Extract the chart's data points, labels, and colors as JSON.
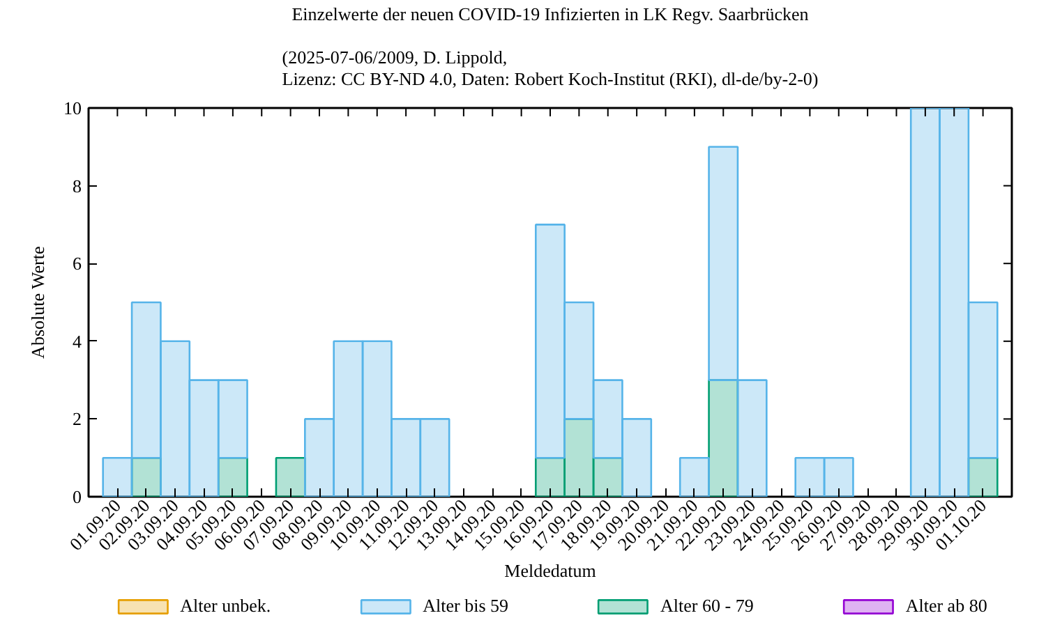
{
  "chart_data": {
    "type": "bar",
    "title": "Einzelwerte der neuen COVID-19 Infizierten in LK Regv. Saarbrücken",
    "subtitle": "(2025-07-06/2009, D. Lippold,\nLizenz: CC BY-ND 4.0, Daten: Robert Koch-Institut (RKI), dl-de/by-2-0)",
    "xlabel": "Meldedatum",
    "ylabel": "Absolute Werte",
    "categories": [
      "01.09.20",
      "02.09.20",
      "03.09.20",
      "04.09.20",
      "05.09.20",
      "06.09.20",
      "07.09.20",
      "08.09.20",
      "09.09.20",
      "10.09.20",
      "11.09.20",
      "12.09.20",
      "13.09.20",
      "14.09.20",
      "15.09.20",
      "16.09.20",
      "17.09.20",
      "18.09.20",
      "19.09.20",
      "20.09.20",
      "21.09.20",
      "22.09.20",
      "23.09.20",
      "24.09.20",
      "25.09.20",
      "26.09.20",
      "27.09.20",
      "28.09.20",
      "29.09.20",
      "30.09.20",
      "01.10.20"
    ],
    "stacked": true,
    "series": [
      {
        "name": "Alter ab 80",
        "color": "#9400d3",
        "values": [
          0,
          0,
          0,
          0,
          0,
          0,
          0,
          0,
          0,
          0,
          0,
          0,
          0,
          0,
          0,
          0,
          0,
          0,
          0,
          0,
          0,
          0,
          0,
          0,
          0,
          0,
          0,
          0,
          0,
          0,
          0
        ]
      },
      {
        "name": "Alter 60 - 79",
        "color": "#009e73",
        "values": [
          0,
          1,
          0,
          0,
          1,
          0,
          1,
          0,
          0,
          0,
          0,
          0,
          0,
          0,
          0,
          1,
          2,
          1,
          0,
          0,
          0,
          3,
          0,
          0,
          0,
          0,
          0,
          0,
          0,
          0,
          1
        ]
      },
      {
        "name": "Alter bis 59",
        "color": "#56b4e9",
        "values": [
          1,
          4,
          4,
          3,
          2,
          0,
          0,
          2,
          4,
          4,
          2,
          2,
          0,
          0,
          0,
          6,
          3,
          2,
          2,
          0,
          1,
          6,
          3,
          0,
          1,
          1,
          0,
          0,
          10,
          10,
          4
        ]
      },
      {
        "name": "Alter unbek.",
        "color": "#e69f00",
        "values": [
          0,
          0,
          0,
          0,
          0,
          0,
          0,
          0,
          0,
          0,
          0,
          0,
          0,
          0,
          0,
          0,
          0,
          0,
          0,
          0,
          0,
          0,
          0,
          0,
          0,
          0,
          0,
          0,
          0,
          0,
          0
        ]
      }
    ],
    "ylim": [
      0,
      10
    ],
    "yticks": [
      0,
      2,
      4,
      6,
      8,
      10
    ],
    "grid": false,
    "legend": "bottom"
  }
}
